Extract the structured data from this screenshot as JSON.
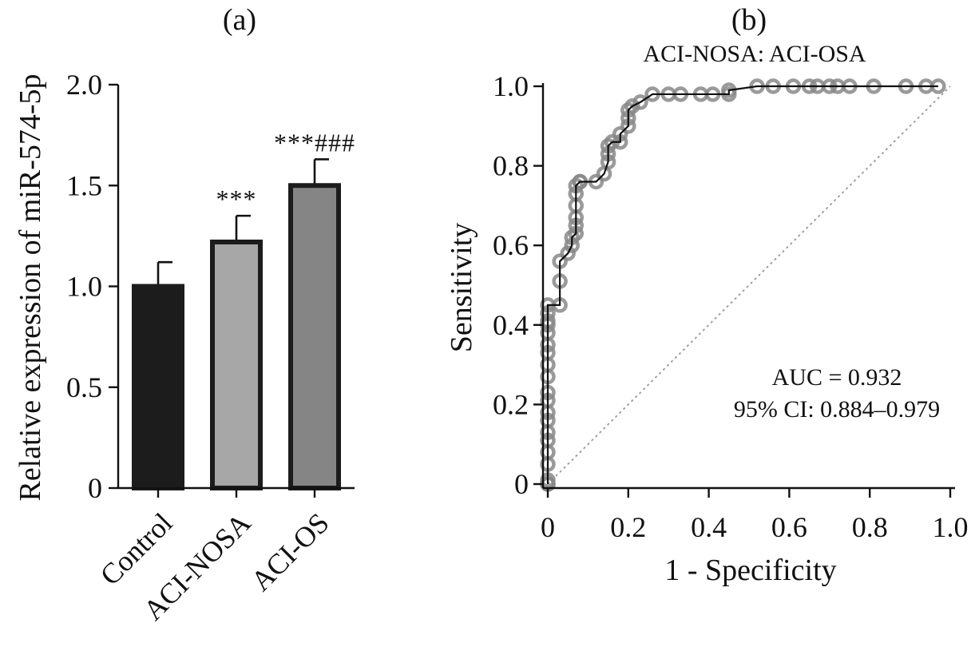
{
  "chart_data": [
    {
      "type": "bar",
      "panel_label": "(a)",
      "ylabel": "Relative expression of miR-574-5p",
      "xlabel": "",
      "categories": [
        "Control",
        "ACI-NOSA",
        "ACI-OS"
      ],
      "values": [
        1.0,
        1.22,
        1.5
      ],
      "errors": [
        0.12,
        0.13,
        0.13
      ],
      "significance": [
        "",
        "***",
        "***###"
      ],
      "colors": [
        "#1c1c1c",
        "#a7a7a7",
        "#858585"
      ],
      "ylim": [
        0,
        2.0
      ],
      "yticks": [
        0,
        0.5,
        1.0,
        1.5,
        2.0
      ],
      "ytick_labels": [
        "0",
        "0.5",
        "1.0",
        "1.5",
        "2.0"
      ],
      "grid": false
    },
    {
      "type": "line",
      "panel_label": "(b)",
      "title": "ACI-NOSA: ACI-OSA",
      "xlabel": "1 - Specificity",
      "ylabel": "Sensitivity",
      "xlim": [
        0,
        1.0
      ],
      "ylim": [
        0,
        1.0
      ],
      "xticks": [
        0,
        0.2,
        0.4,
        0.6,
        0.8,
        1.0
      ],
      "xtick_labels": [
        "0",
        "0.2",
        "0.4",
        "0.6",
        "0.8",
        "1.0"
      ],
      "yticks": [
        0,
        0.2,
        0.4,
        0.6,
        0.8,
        1.0
      ],
      "ytick_labels": [
        "0",
        "0.2",
        "0.4",
        "0.6",
        "0.8",
        "1.0"
      ],
      "auc_text": "AUC = 0.932",
      "ci_text": "95% CI: 0.884–0.979",
      "grid": false,
      "reference_line": [
        [
          0,
          0
        ],
        [
          1,
          1
        ]
      ],
      "series": [
        {
          "x": [
            0,
            0,
            0,
            0,
            0,
            0,
            0,
            0,
            0,
            0,
            0,
            0,
            0,
            0,
            0,
            0,
            0,
            0,
            0,
            0,
            0.03,
            0.03,
            0.03,
            0.05,
            0.06,
            0.06,
            0.07,
            0.07,
            0.07,
            0.07,
            0.07,
            0.07,
            0.08,
            0.08,
            0.12,
            0.14,
            0.15,
            0.15,
            0.15,
            0.16,
            0.18,
            0.18,
            0.2,
            0.2,
            0.2,
            0.21,
            0.23,
            0.26,
            0.3,
            0.33,
            0.38,
            0.41,
            0.45,
            0.45,
            0.52,
            0.56,
            0.61,
            0.65,
            0.67,
            0.7,
            0.72,
            0.75,
            0.81,
            0.89,
            0.94,
            0.97
          ],
          "y": [
            0,
            0,
            0.01,
            0.05,
            0.08,
            0.11,
            0.13,
            0.16,
            0.18,
            0.21,
            0.23,
            0.27,
            0.3,
            0.33,
            0.35,
            0.38,
            0.4,
            0.41,
            0.43,
            0.45,
            0.45,
            0.51,
            0.56,
            0.58,
            0.6,
            0.62,
            0.63,
            0.65,
            0.67,
            0.7,
            0.73,
            0.75,
            0.76,
            0.76,
            0.76,
            0.78,
            0.81,
            0.83,
            0.85,
            0.86,
            0.86,
            0.88,
            0.9,
            0.92,
            0.94,
            0.95,
            0.96,
            0.98,
            0.98,
            0.98,
            0.98,
            0.98,
            0.98,
            0.99,
            1.0,
            1.0,
            1.0,
            1.0,
            1.0,
            1.0,
            1.0,
            1.0,
            1.0,
            1.0,
            1.0,
            1.0
          ]
        }
      ]
    }
  ]
}
